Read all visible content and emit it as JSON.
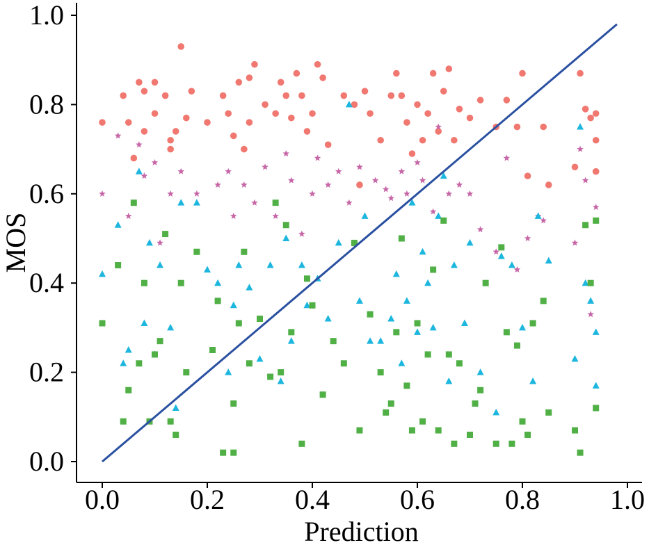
{
  "chart_data": {
    "type": "scatter",
    "title": "",
    "xlabel": "Prediction",
    "ylabel": "MOS",
    "xlim": [
      -0.05,
      1.03
    ],
    "ylim": [
      -0.05,
      1.03
    ],
    "xticks": [
      0.0,
      0.2,
      0.4,
      0.6,
      0.8,
      1.0
    ],
    "yticks": [
      0.0,
      0.2,
      0.4,
      0.6,
      0.8,
      1.0
    ],
    "xtick_labels": [
      "0.0",
      "0.2",
      "0.4",
      "0.6",
      "0.8",
      "1.0"
    ],
    "ytick_labels": [
      "0.0",
      "0.2",
      "0.4",
      "0.6",
      "0.8",
      "1.0"
    ],
    "grid": false,
    "line": {
      "name": "identity",
      "color": "#2a50a0",
      "x": [
        0.0,
        0.98
      ],
      "y": [
        0.0,
        0.98
      ]
    },
    "series": [
      {
        "name": "red",
        "marker": "circle",
        "color": "#f07870",
        "points": [
          [
            0.0,
            0.76
          ],
          [
            0.04,
            0.82
          ],
          [
            0.05,
            0.76
          ],
          [
            0.06,
            0.68
          ],
          [
            0.07,
            0.85
          ],
          [
            0.08,
            0.83
          ],
          [
            0.08,
            0.74
          ],
          [
            0.1,
            0.85
          ],
          [
            0.1,
            0.78
          ],
          [
            0.12,
            0.82
          ],
          [
            0.13,
            0.72
          ],
          [
            0.13,
            0.7
          ],
          [
            0.14,
            0.74
          ],
          [
            0.15,
            0.93
          ],
          [
            0.16,
            0.77
          ],
          [
            0.17,
            0.83
          ],
          [
            0.2,
            0.76
          ],
          [
            0.23,
            0.82
          ],
          [
            0.24,
            0.78
          ],
          [
            0.25,
            0.73
          ],
          [
            0.26,
            0.85
          ],
          [
            0.27,
            0.7
          ],
          [
            0.28,
            0.86
          ],
          [
            0.28,
            0.76
          ],
          [
            0.29,
            0.89
          ],
          [
            0.31,
            0.8
          ],
          [
            0.33,
            0.78
          ],
          [
            0.34,
            0.85
          ],
          [
            0.35,
            0.82
          ],
          [
            0.36,
            0.77
          ],
          [
            0.37,
            0.87
          ],
          [
            0.38,
            0.82
          ],
          [
            0.39,
            0.74
          ],
          [
            0.4,
            0.78
          ],
          [
            0.41,
            0.89
          ],
          [
            0.42,
            0.86
          ],
          [
            0.43,
            0.71
          ],
          [
            0.46,
            0.82
          ],
          [
            0.48,
            0.8
          ],
          [
            0.49,
            0.62
          ],
          [
            0.5,
            0.83
          ],
          [
            0.51,
            0.78
          ],
          [
            0.53,
            0.72
          ],
          [
            0.55,
            0.82
          ],
          [
            0.56,
            0.87
          ],
          [
            0.57,
            0.82
          ],
          [
            0.58,
            0.76
          ],
          [
            0.59,
            0.69
          ],
          [
            0.6,
            0.8
          ],
          [
            0.61,
            0.72
          ],
          [
            0.62,
            0.78
          ],
          [
            0.63,
            0.87
          ],
          [
            0.64,
            0.74
          ],
          [
            0.65,
            0.83
          ],
          [
            0.66,
            0.88
          ],
          [
            0.67,
            0.72
          ],
          [
            0.68,
            0.79
          ],
          [
            0.7,
            0.77
          ],
          [
            0.72,
            0.81
          ],
          [
            0.75,
            0.75
          ],
          [
            0.77,
            0.81
          ],
          [
            0.79,
            0.75
          ],
          [
            0.8,
            0.87
          ],
          [
            0.81,
            0.64
          ],
          [
            0.84,
            0.75
          ],
          [
            0.85,
            0.62
          ],
          [
            0.9,
            0.66
          ],
          [
            0.91,
            0.87
          ],
          [
            0.92,
            0.79
          ],
          [
            0.93,
            0.77
          ],
          [
            0.94,
            0.72
          ],
          [
            0.94,
            0.65
          ],
          [
            0.94,
            0.78
          ]
        ]
      },
      {
        "name": "purple",
        "marker": "star",
        "color": "#c766a7",
        "points": [
          [
            0.0,
            0.6
          ],
          [
            0.03,
            0.73
          ],
          [
            0.05,
            0.55
          ],
          [
            0.07,
            0.71
          ],
          [
            0.08,
            0.64
          ],
          [
            0.1,
            0.67
          ],
          [
            0.11,
            0.49
          ],
          [
            0.13,
            0.6
          ],
          [
            0.15,
            0.65
          ],
          [
            0.18,
            0.6
          ],
          [
            0.22,
            0.62
          ],
          [
            0.24,
            0.65
          ],
          [
            0.25,
            0.55
          ],
          [
            0.27,
            0.62
          ],
          [
            0.29,
            0.58
          ],
          [
            0.31,
            0.66
          ],
          [
            0.33,
            0.55
          ],
          [
            0.35,
            0.69
          ],
          [
            0.36,
            0.63
          ],
          [
            0.38,
            0.51
          ],
          [
            0.4,
            0.6
          ],
          [
            0.41,
            0.68
          ],
          [
            0.43,
            0.62
          ],
          [
            0.45,
            0.65
          ],
          [
            0.47,
            0.58
          ],
          [
            0.49,
            0.66
          ],
          [
            0.52,
            0.63
          ],
          [
            0.54,
            0.61
          ],
          [
            0.55,
            0.59
          ],
          [
            0.57,
            0.65
          ],
          [
            0.58,
            0.6
          ],
          [
            0.6,
            0.67
          ],
          [
            0.61,
            0.63
          ],
          [
            0.63,
            0.56
          ],
          [
            0.64,
            0.75
          ],
          [
            0.66,
            0.6
          ],
          [
            0.68,
            0.62
          ],
          [
            0.7,
            0.6
          ],
          [
            0.72,
            0.52
          ],
          [
            0.75,
            0.47
          ],
          [
            0.77,
            0.68
          ],
          [
            0.79,
            0.43
          ],
          [
            0.81,
            0.5
          ],
          [
            0.83,
            0.55
          ],
          [
            0.84,
            0.54
          ],
          [
            0.9,
            0.49
          ],
          [
            0.91,
            0.7
          ],
          [
            0.92,
            0.63
          ],
          [
            0.93,
            0.33
          ],
          [
            0.94,
            0.57
          ]
        ]
      },
      {
        "name": "cyan",
        "marker": "triangle",
        "color": "#1db6de",
        "points": [
          [
            0.0,
            0.42
          ],
          [
            0.03,
            0.53
          ],
          [
            0.04,
            0.22
          ],
          [
            0.05,
            0.25
          ],
          [
            0.07,
            0.65
          ],
          [
            0.08,
            0.31
          ],
          [
            0.09,
            0.49
          ],
          [
            0.1,
            0.24
          ],
          [
            0.11,
            0.44
          ],
          [
            0.13,
            0.3
          ],
          [
            0.14,
            0.12
          ],
          [
            0.15,
            0.58
          ],
          [
            0.18,
            0.58
          ],
          [
            0.2,
            0.43
          ],
          [
            0.22,
            0.4
          ],
          [
            0.24,
            0.2
          ],
          [
            0.25,
            0.35
          ],
          [
            0.26,
            0.44
          ],
          [
            0.28,
            0.39
          ],
          [
            0.3,
            0.23
          ],
          [
            0.32,
            0.44
          ],
          [
            0.34,
            0.18
          ],
          [
            0.35,
            0.5
          ],
          [
            0.36,
            0.27
          ],
          [
            0.38,
            0.44
          ],
          [
            0.39,
            0.35
          ],
          [
            0.41,
            0.41
          ],
          [
            0.43,
            0.32
          ],
          [
            0.45,
            0.49
          ],
          [
            0.47,
            0.8
          ],
          [
            0.49,
            0.36
          ],
          [
            0.5,
            0.55
          ],
          [
            0.51,
            0.27
          ],
          [
            0.53,
            0.27
          ],
          [
            0.55,
            0.32
          ],
          [
            0.56,
            0.42
          ],
          [
            0.57,
            0.22
          ],
          [
            0.58,
            0.36
          ],
          [
            0.59,
            0.58
          ],
          [
            0.6,
            0.29
          ],
          [
            0.61,
            0.47
          ],
          [
            0.62,
            0.4
          ],
          [
            0.63,
            0.3
          ],
          [
            0.64,
            0.55
          ],
          [
            0.65,
            0.64
          ],
          [
            0.66,
            0.18
          ],
          [
            0.67,
            0.44
          ],
          [
            0.69,
            0.31
          ],
          [
            0.7,
            0.49
          ],
          [
            0.72,
            0.2
          ],
          [
            0.75,
            0.11
          ],
          [
            0.76,
            0.46
          ],
          [
            0.78,
            0.44
          ],
          [
            0.8,
            0.3
          ],
          [
            0.82,
            0.18
          ],
          [
            0.83,
            0.55
          ],
          [
            0.85,
            0.45
          ],
          [
            0.9,
            0.23
          ],
          [
            0.91,
            0.75
          ],
          [
            0.92,
            0.4
          ],
          [
            0.93,
            0.36
          ],
          [
            0.94,
            0.29
          ],
          [
            0.94,
            0.17
          ]
        ]
      },
      {
        "name": "green",
        "marker": "square",
        "color": "#50b046",
        "points": [
          [
            0.0,
            0.31
          ],
          [
            0.03,
            0.44
          ],
          [
            0.04,
            0.09
          ],
          [
            0.05,
            0.16
          ],
          [
            0.06,
            0.58
          ],
          [
            0.07,
            0.22
          ],
          [
            0.08,
            0.4
          ],
          [
            0.09,
            0.09
          ],
          [
            0.1,
            0.24
          ],
          [
            0.11,
            0.27
          ],
          [
            0.12,
            0.51
          ],
          [
            0.13,
            0.09
          ],
          [
            0.14,
            0.06
          ],
          [
            0.15,
            0.4
          ],
          [
            0.16,
            0.2
          ],
          [
            0.18,
            0.47
          ],
          [
            0.21,
            0.25
          ],
          [
            0.22,
            0.36
          ],
          [
            0.23,
            0.02
          ],
          [
            0.25,
            0.02
          ],
          [
            0.25,
            0.13
          ],
          [
            0.26,
            0.31
          ],
          [
            0.27,
            0.47
          ],
          [
            0.28,
            0.22
          ],
          [
            0.3,
            0.32
          ],
          [
            0.32,
            0.19
          ],
          [
            0.33,
            0.58
          ],
          [
            0.34,
            0.2
          ],
          [
            0.35,
            0.53
          ],
          [
            0.36,
            0.29
          ],
          [
            0.38,
            0.04
          ],
          [
            0.39,
            0.41
          ],
          [
            0.4,
            0.35
          ],
          [
            0.42,
            0.15
          ],
          [
            0.44,
            0.27
          ],
          [
            0.46,
            0.22
          ],
          [
            0.48,
            0.49
          ],
          [
            0.49,
            0.07
          ],
          [
            0.51,
            0.33
          ],
          [
            0.53,
            0.2
          ],
          [
            0.54,
            0.11
          ],
          [
            0.55,
            0.13
          ],
          [
            0.56,
            0.29
          ],
          [
            0.57,
            0.5
          ],
          [
            0.58,
            0.17
          ],
          [
            0.59,
            0.07
          ],
          [
            0.6,
            0.31
          ],
          [
            0.61,
            0.09
          ],
          [
            0.62,
            0.24
          ],
          [
            0.63,
            0.43
          ],
          [
            0.64,
            0.07
          ],
          [
            0.65,
            0.54
          ],
          [
            0.66,
            0.24
          ],
          [
            0.67,
            0.04
          ],
          [
            0.68,
            0.22
          ],
          [
            0.7,
            0.06
          ],
          [
            0.71,
            0.13
          ],
          [
            0.72,
            0.16
          ],
          [
            0.73,
            0.4
          ],
          [
            0.75,
            0.04
          ],
          [
            0.76,
            0.48
          ],
          [
            0.77,
            0.29
          ],
          [
            0.78,
            0.04
          ],
          [
            0.79,
            0.26
          ],
          [
            0.8,
            0.09
          ],
          [
            0.81,
            0.06
          ],
          [
            0.82,
            0.31
          ],
          [
            0.84,
            0.36
          ],
          [
            0.85,
            0.11
          ],
          [
            0.9,
            0.07
          ],
          [
            0.91,
            0.02
          ],
          [
            0.92,
            0.53
          ],
          [
            0.93,
            0.4
          ],
          [
            0.94,
            0.12
          ],
          [
            0.94,
            0.54
          ]
        ]
      }
    ]
  }
}
